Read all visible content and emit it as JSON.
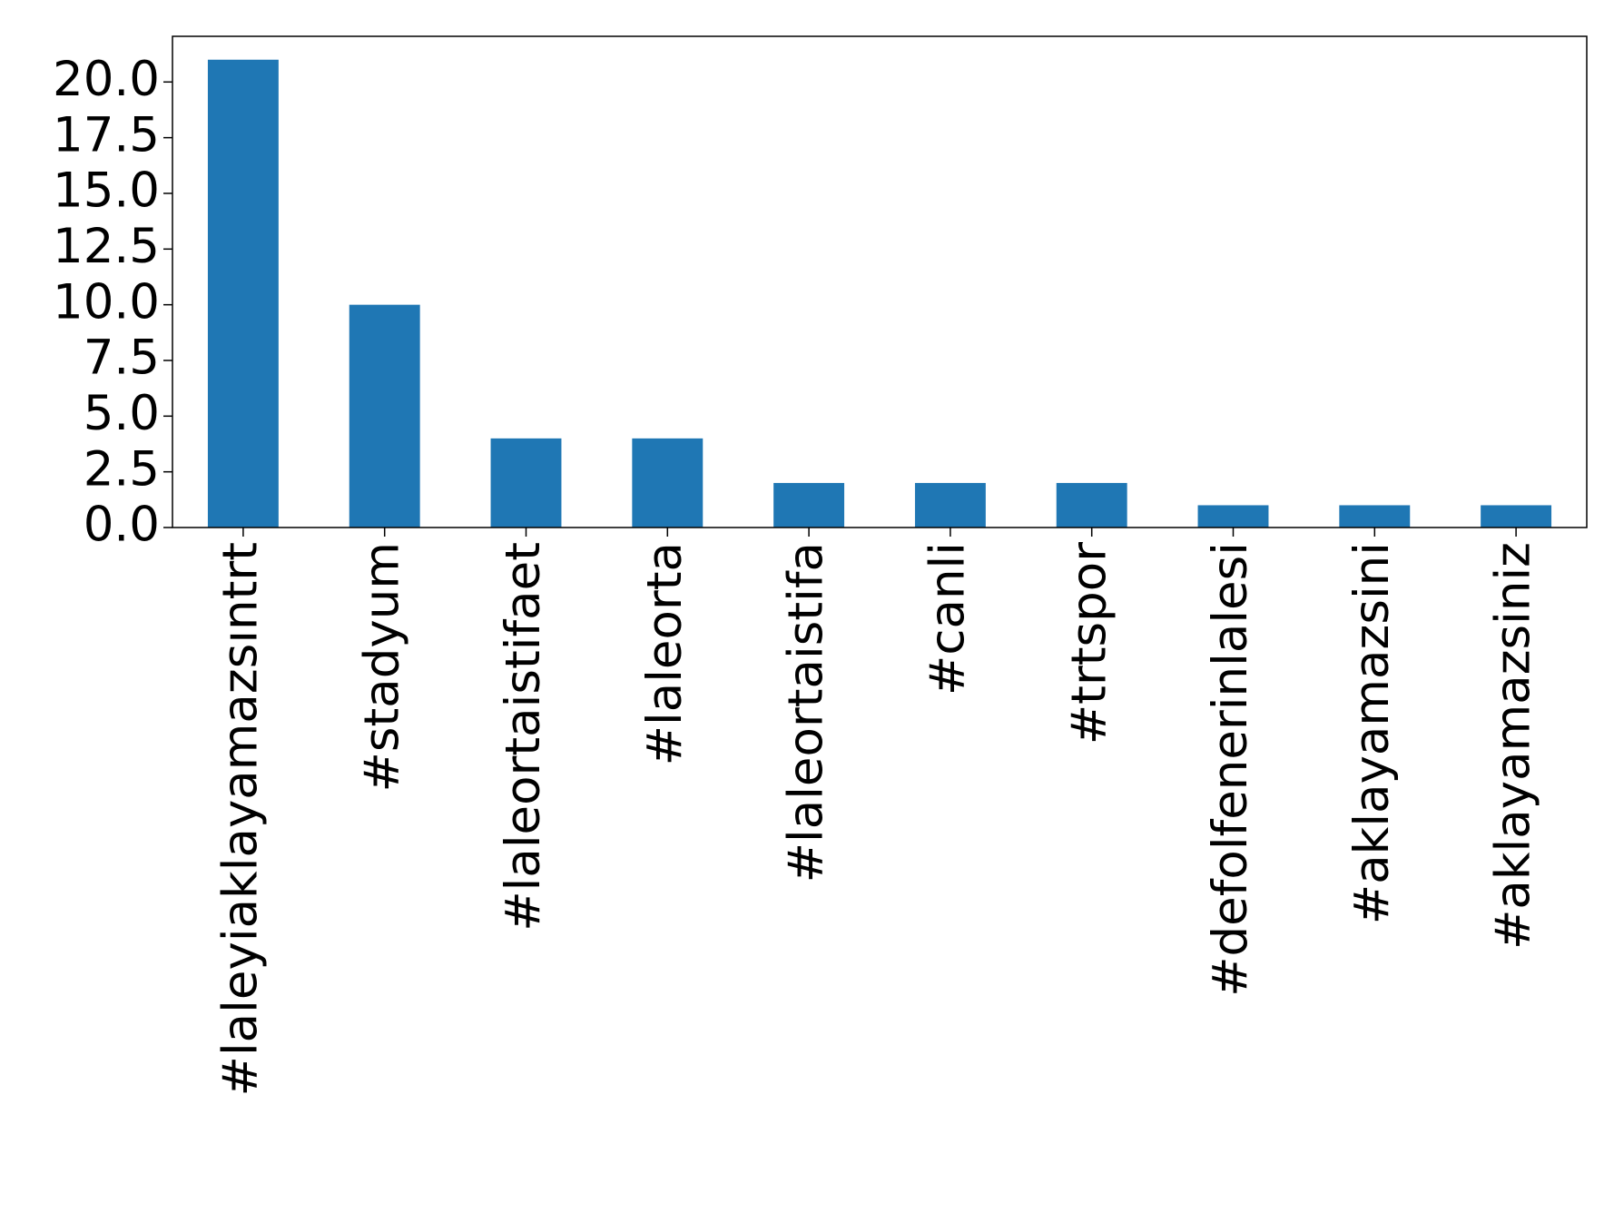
{
  "chart_data": {
    "type": "bar",
    "categories": [
      "#laleyiaklayamazsıntrt",
      "#stadyum",
      "#laleortaistifaet",
      "#laleorta",
      "#laleortaistifa",
      "#canli",
      "#trtspor",
      "#defolfenerinlalesi",
      "#aklayamazsini",
      "#aklayamazsiniz"
    ],
    "values": [
      21,
      10,
      4,
      4,
      2,
      2,
      2,
      1,
      1,
      1
    ],
    "color": "#1f77b4",
    "ylim": [
      0,
      22.05
    ],
    "yticks": [
      {
        "value": 0,
        "label": "0.0"
      },
      {
        "value": 2.5,
        "label": "2.5"
      },
      {
        "value": 5,
        "label": "5.0"
      },
      {
        "value": 7.5,
        "label": "7.5"
      },
      {
        "value": 10,
        "label": "10.0"
      },
      {
        "value": 12.5,
        "label": "12.5"
      },
      {
        "value": 15,
        "label": "15.0"
      },
      {
        "value": 17.5,
        "label": "17.5"
      },
      {
        "value": 20,
        "label": "20.0"
      }
    ],
    "grid": false
  }
}
